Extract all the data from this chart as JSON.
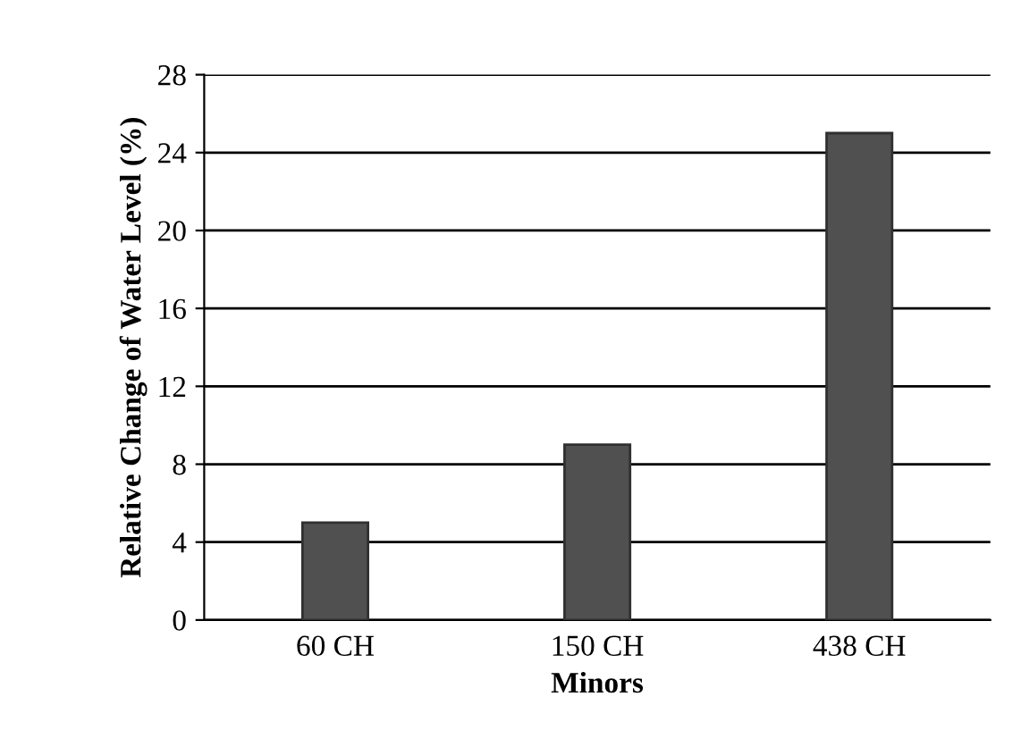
{
  "chart_data": {
    "type": "bar",
    "xlabel": "Minors",
    "ylabel": "Relative Change of Water Level (%)",
    "categories": [
      "60 CH",
      "150 CH",
      "438 CH"
    ],
    "values": [
      5,
      9,
      25
    ],
    "color": "#505050",
    "ylim": [
      0,
      28
    ],
    "yticks": [
      0,
      4,
      8,
      12,
      16,
      20,
      24,
      28
    ],
    "grid": "y"
  }
}
